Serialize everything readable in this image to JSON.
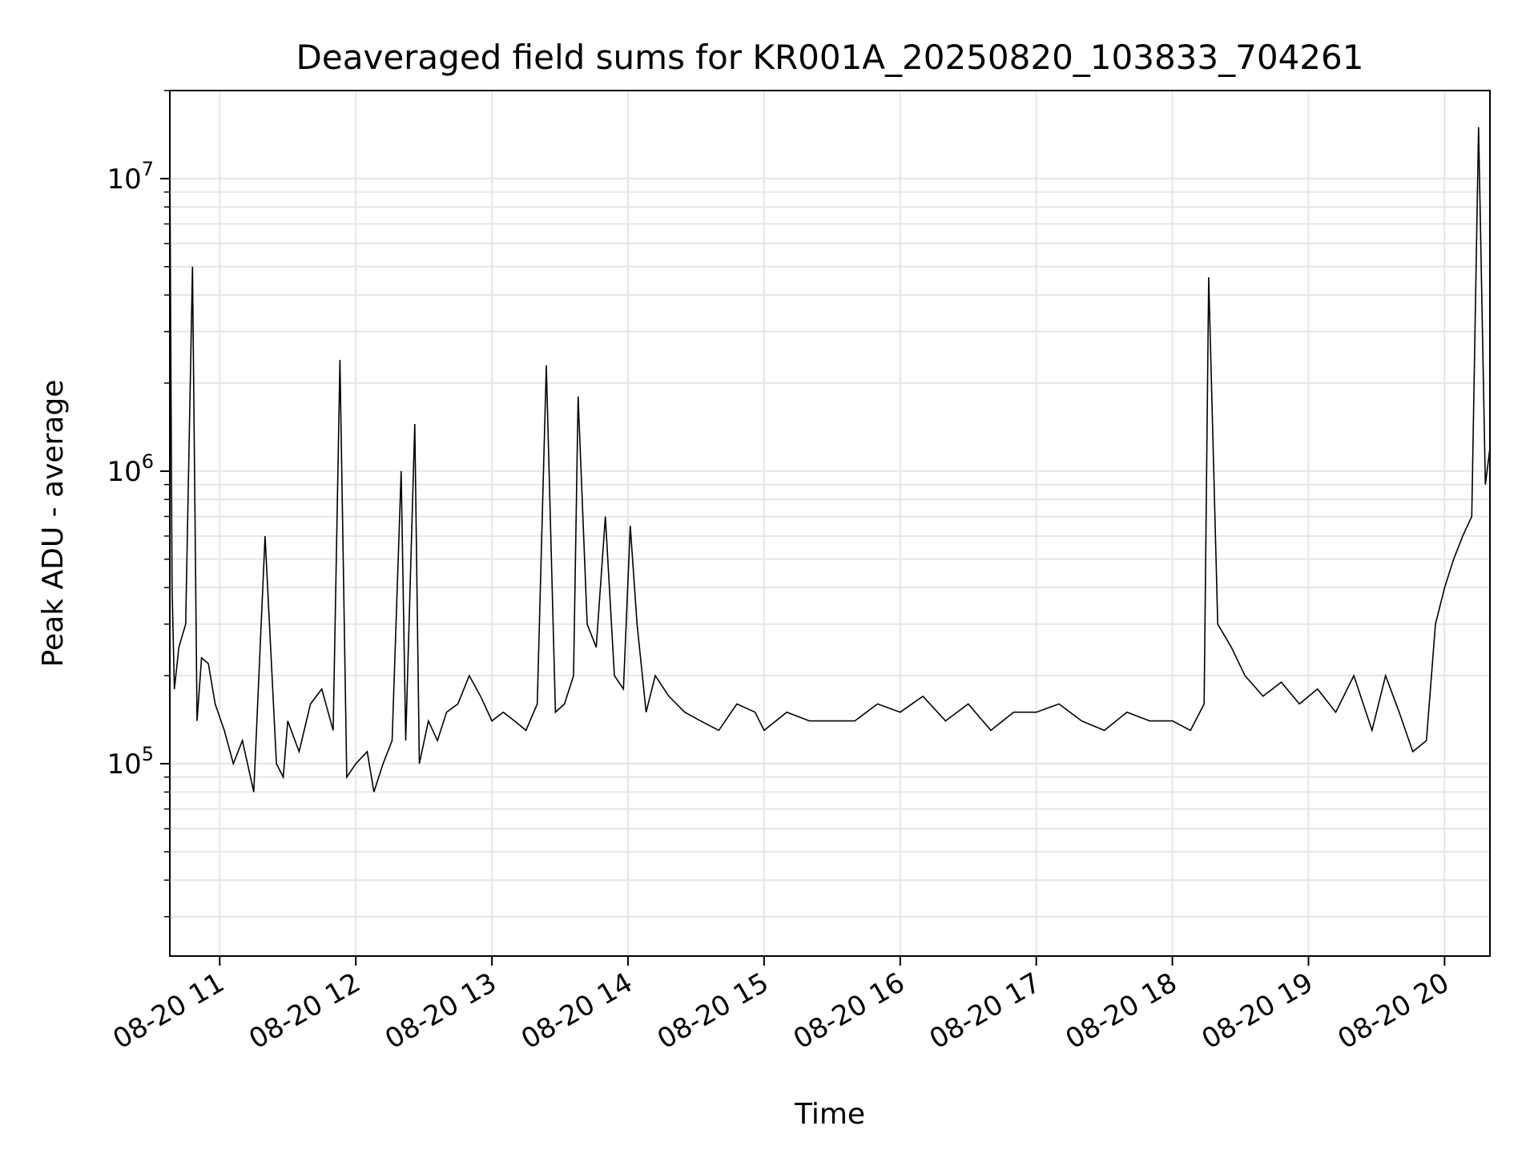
{
  "chart_data": {
    "type": "line",
    "title": "Deaveraged field sums for KR001A_20250820_103833_704261",
    "xlabel": "Time",
    "ylabel": "Peak ADU - average",
    "y_scale": "log",
    "ylim": [
      22000,
      20000000
    ],
    "xlim": [
      "2025-08-20 10:38",
      "2025-08-20 20:20"
    ],
    "grid": true,
    "grid_minor": true,
    "line_color": "#000000",
    "grid_color": "#e6e6e6",
    "x_ticks": [
      {
        "t": "2025-08-20 11:00",
        "label": "08-20 11"
      },
      {
        "t": "2025-08-20 12:00",
        "label": "08-20 12"
      },
      {
        "t": "2025-08-20 13:00",
        "label": "08-20 13"
      },
      {
        "t": "2025-08-20 14:00",
        "label": "08-20 14"
      },
      {
        "t": "2025-08-20 15:00",
        "label": "08-20 15"
      },
      {
        "t": "2025-08-20 16:00",
        "label": "08-20 16"
      },
      {
        "t": "2025-08-20 17:00",
        "label": "08-20 17"
      },
      {
        "t": "2025-08-20 18:00",
        "label": "08-20 18"
      },
      {
        "t": "2025-08-20 19:00",
        "label": "08-20 19"
      },
      {
        "t": "2025-08-20 20:00",
        "label": "08-20 20"
      }
    ],
    "y_ticks": [
      {
        "value": 100000,
        "base": "10",
        "exp": "5"
      },
      {
        "value": 1000000,
        "base": "10",
        "exp": "6"
      },
      {
        "value": 10000000,
        "base": "10",
        "exp": "7"
      }
    ],
    "series": [
      {
        "x": [
          "2025-08-20 10:38",
          "2025-08-20 10:39",
          "2025-08-20 10:40",
          "2025-08-20 10:42",
          "2025-08-20 10:45",
          "2025-08-20 10:48",
          "2025-08-20 10:50",
          "2025-08-20 10:52",
          "2025-08-20 10:55",
          "2025-08-20 10:58",
          "2025-08-20 11:02",
          "2025-08-20 11:06",
          "2025-08-20 11:10",
          "2025-08-20 11:15",
          "2025-08-20 11:20",
          "2025-08-20 11:25",
          "2025-08-20 11:28",
          "2025-08-20 11:30",
          "2025-08-20 11:35",
          "2025-08-20 11:40",
          "2025-08-20 11:45",
          "2025-08-20 11:50",
          "2025-08-20 11:53",
          "2025-08-20 11:56",
          "2025-08-20 12:00",
          "2025-08-20 12:05",
          "2025-08-20 12:08",
          "2025-08-20 12:12",
          "2025-08-20 12:16",
          "2025-08-20 12:20",
          "2025-08-20 12:22",
          "2025-08-20 12:26",
          "2025-08-20 12:28",
          "2025-08-20 12:32",
          "2025-08-20 12:36",
          "2025-08-20 12:40",
          "2025-08-20 12:45",
          "2025-08-20 12:50",
          "2025-08-20 12:55",
          "2025-08-20 13:00",
          "2025-08-20 13:05",
          "2025-08-20 13:10",
          "2025-08-20 13:15",
          "2025-08-20 13:20",
          "2025-08-20 13:24",
          "2025-08-20 13:28",
          "2025-08-20 13:32",
          "2025-08-20 13:36",
          "2025-08-20 13:38",
          "2025-08-20 13:42",
          "2025-08-20 13:46",
          "2025-08-20 13:50",
          "2025-08-20 13:54",
          "2025-08-20 13:58",
          "2025-08-20 14:01",
          "2025-08-20 14:04",
          "2025-08-20 14:08",
          "2025-08-20 14:12",
          "2025-08-20 14:18",
          "2025-08-20 14:25",
          "2025-08-20 14:32",
          "2025-08-20 14:40",
          "2025-08-20 14:48",
          "2025-08-20 14:56",
          "2025-08-20 15:00",
          "2025-08-20 15:10",
          "2025-08-20 15:20",
          "2025-08-20 15:30",
          "2025-08-20 15:40",
          "2025-08-20 15:50",
          "2025-08-20 16:00",
          "2025-08-20 16:10",
          "2025-08-20 16:20",
          "2025-08-20 16:30",
          "2025-08-20 16:40",
          "2025-08-20 16:50",
          "2025-08-20 17:00",
          "2025-08-20 17:10",
          "2025-08-20 17:20",
          "2025-08-20 17:30",
          "2025-08-20 17:40",
          "2025-08-20 17:50",
          "2025-08-20 18:00",
          "2025-08-20 18:08",
          "2025-08-20 18:14",
          "2025-08-20 18:16",
          "2025-08-20 18:20",
          "2025-08-20 18:26",
          "2025-08-20 18:32",
          "2025-08-20 18:40",
          "2025-08-20 18:48",
          "2025-08-20 18:56",
          "2025-08-20 19:04",
          "2025-08-20 19:12",
          "2025-08-20 19:20",
          "2025-08-20 19:28",
          "2025-08-20 19:34",
          "2025-08-20 19:40",
          "2025-08-20 19:46",
          "2025-08-20 19:52",
          "2025-08-20 19:56",
          "2025-08-20 20:00",
          "2025-08-20 20:04",
          "2025-08-20 20:08",
          "2025-08-20 20:12",
          "2025-08-20 20:15",
          "2025-08-20 20:18",
          "2025-08-20 20:20"
        ],
        "y": [
          12000000,
          400000,
          180000,
          250000,
          300000,
          5000000,
          140000,
          230000,
          220000,
          160000,
          130000,
          100000,
          120000,
          80000,
          600000,
          100000,
          90000,
          140000,
          110000,
          160000,
          180000,
          130000,
          2400000,
          90000,
          100000,
          110000,
          80000,
          100000,
          120000,
          1000000,
          120000,
          1450000,
          100000,
          140000,
          120000,
          150000,
          160000,
          200000,
          170000,
          140000,
          150000,
          140000,
          130000,
          160000,
          2300000,
          150000,
          160000,
          200000,
          1800000,
          300000,
          250000,
          700000,
          200000,
          180000,
          650000,
          300000,
          150000,
          200000,
          170000,
          150000,
          140000,
          130000,
          160000,
          150000,
          130000,
          150000,
          140000,
          140000,
          140000,
          160000,
          150000,
          170000,
          140000,
          160000,
          130000,
          150000,
          150000,
          160000,
          140000,
          130000,
          150000,
          140000,
          140000,
          130000,
          160000,
          4600000,
          300000,
          250000,
          200000,
          170000,
          190000,
          160000,
          180000,
          150000,
          200000,
          130000,
          200000,
          150000,
          110000,
          120000,
          300000,
          400000,
          500000,
          600000,
          700000,
          15000000,
          900000,
          1200000
        ]
      }
    ]
  }
}
